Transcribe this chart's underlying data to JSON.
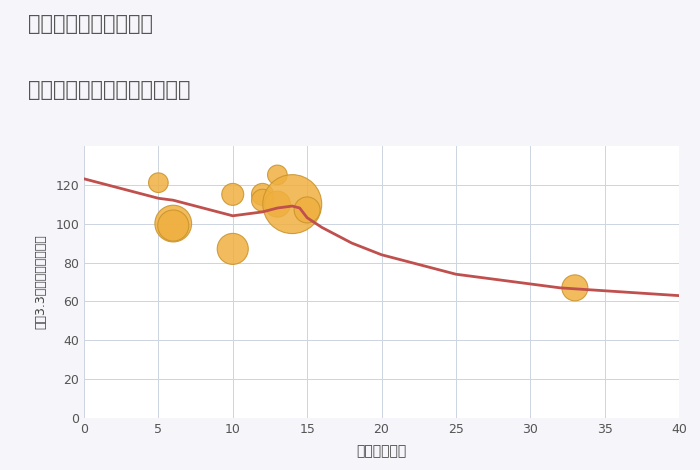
{
  "title_line1": "兵庫県尼崎市崇徳院の",
  "title_line2": "築年数別中古マンション価格",
  "xlabel": "築年数（年）",
  "ylabel": "坪（3.3㎡）単価（万円）",
  "bg_color": "#f5f5fa",
  "plot_bg_color": "#ffffff",
  "title_color": "#555555",
  "line_color": "#c0504d",
  "scatter_color": "#f0b040",
  "scatter_edge_color": "#c8922a",
  "grid_color": "#ccd5e0",
  "annotation_color": "#8899bb",
  "line_x": [
    0,
    1,
    2,
    3,
    4,
    5,
    6,
    7,
    8,
    9,
    10,
    11,
    12,
    13,
    14,
    14.5,
    15,
    16,
    17,
    18,
    19,
    20,
    21,
    22,
    23,
    24,
    25,
    26,
    27,
    28,
    29,
    30,
    31,
    32,
    33,
    34,
    35,
    36,
    37,
    38,
    39,
    40
  ],
  "line_y": [
    123,
    121,
    119,
    117,
    115,
    113,
    112,
    110,
    108,
    106,
    104,
    105,
    106,
    108,
    109,
    108,
    103,
    98,
    94,
    90,
    87,
    84,
    82,
    80,
    78,
    76,
    74,
    73,
    72,
    71,
    70,
    69,
    68,
    67,
    66.5,
    66,
    65.5,
    65,
    64.5,
    64,
    63.5,
    63
  ],
  "scatter_x": [
    5,
    6,
    6,
    10,
    10,
    12,
    12,
    13,
    13,
    14,
    15,
    33
  ],
  "scatter_y": [
    121,
    100,
    99,
    115,
    87,
    115,
    112,
    125,
    110,
    110,
    107,
    67
  ],
  "scatter_size": [
    200,
    700,
    500,
    250,
    500,
    250,
    250,
    200,
    350,
    1800,
    350,
    350
  ],
  "xlim": [
    0,
    40
  ],
  "ylim": [
    0,
    140
  ],
  "xticks": [
    0,
    5,
    10,
    15,
    20,
    25,
    30,
    35,
    40
  ],
  "yticks": [
    0,
    20,
    40,
    60,
    80,
    100,
    120
  ]
}
